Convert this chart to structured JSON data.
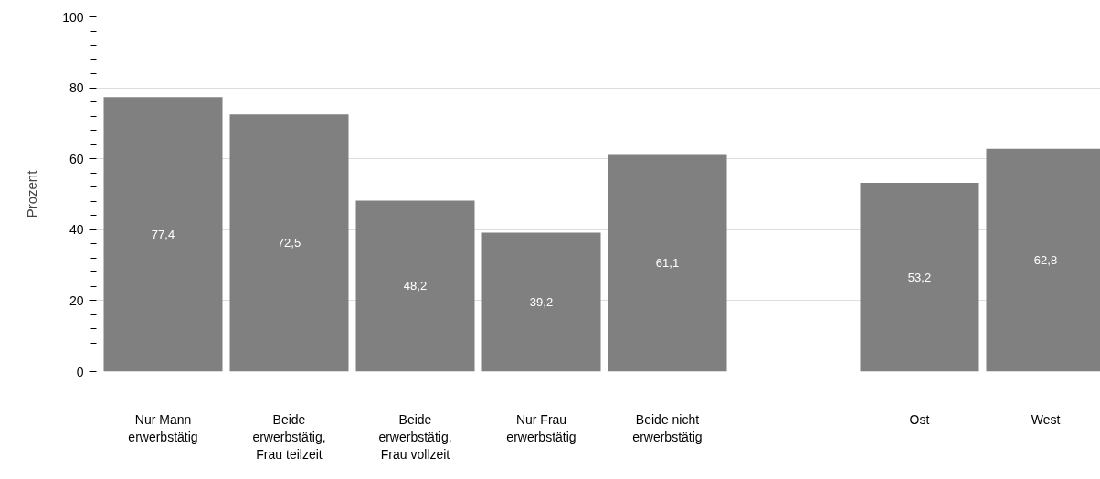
{
  "chart_data": {
    "type": "bar",
    "ylabel": "Prozent",
    "categories": [
      "Nur Mann\nerwerbstätig",
      "Beide\nerwerbstätig,\nFrau teilzeit",
      "Beide\nerwerbstätig,\nFrau vollzeit",
      "Nur Frau\nerwerbstätig",
      "Beide nicht\nerwerbstätig",
      null,
      "Ost",
      "West"
    ],
    "values": [
      77.4,
      72.5,
      48.2,
      39.2,
      61.1,
      null,
      53.2,
      62.8
    ],
    "value_labels": [
      "77,4",
      "72,5",
      "48,2",
      "39,2",
      "61,1",
      null,
      "53,2",
      "62,8"
    ],
    "color": "#808080",
    "ylim": [
      0,
      100
    ],
    "yticks": [
      0,
      {
        "value": 4,
        "label": null
      },
      {
        "value": 8,
        "label": null
      },
      {
        "value": 12,
        "label": null
      },
      {
        "value": 16,
        "label": null
      },
      20,
      {
        "value": 24,
        "label": null
      },
      {
        "value": 28,
        "label": null
      },
      {
        "value": 32,
        "label": null
      },
      {
        "value": 36,
        "label": null
      },
      40,
      {
        "value": 44,
        "label": null
      },
      {
        "value": 48,
        "label": null
      },
      {
        "value": 52,
        "label": null
      },
      {
        "value": 56,
        "label": null
      },
      60,
      {
        "value": 64,
        "label": null
      },
      {
        "value": 68,
        "label": null
      },
      {
        "value": 72,
        "label": null
      },
      {
        "value": 76,
        "label": null
      },
      80,
      {
        "value": 84,
        "label": null
      },
      {
        "value": 88,
        "label": null
      },
      {
        "value": 92,
        "label": null
      },
      {
        "value": 96,
        "label": null
      },
      100
    ],
    "grid": "y"
  }
}
